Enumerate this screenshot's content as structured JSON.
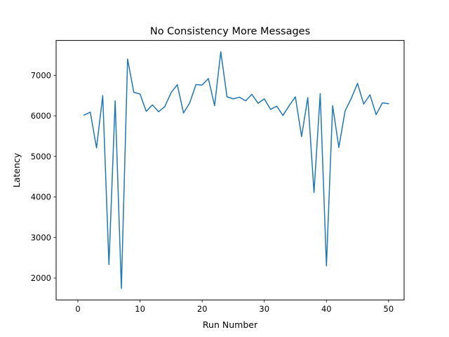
{
  "chart_data": {
    "type": "line",
    "title": "No Consistency More Messages",
    "xlabel": "Run Number",
    "ylabel": "Latency",
    "xlim": [
      -3.5,
      52.5
    ],
    "ylim": [
      1460,
      7860
    ],
    "xticks": [
      0,
      10,
      20,
      30,
      40,
      50
    ],
    "yticks": [
      2000,
      3000,
      4000,
      5000,
      6000,
      7000
    ],
    "grid": false,
    "series": [
      {
        "color": "#1f77b4",
        "x": [
          1,
          2,
          3,
          4,
          5,
          6,
          7,
          8,
          9,
          10,
          11,
          12,
          13,
          14,
          15,
          16,
          17,
          18,
          19,
          20,
          21,
          22,
          23,
          24,
          25,
          26,
          27,
          28,
          29,
          30,
          31,
          32,
          33,
          34,
          35,
          36,
          37,
          38,
          39,
          40,
          41,
          42,
          43,
          44,
          45,
          46,
          47,
          48,
          49,
          50
        ],
        "y": [
          6020,
          6090,
          5210,
          6500,
          2330,
          6370,
          1740,
          7400,
          6580,
          6540,
          6110,
          6270,
          6100,
          6230,
          6570,
          6770,
          6070,
          6320,
          6770,
          6760,
          6920,
          6250,
          7580,
          6470,
          6420,
          6460,
          6370,
          6530,
          6310,
          6420,
          6160,
          6240,
          6010,
          6250,
          6470,
          5490,
          6450,
          4110,
          6550,
          2300,
          6250,
          5220,
          6120,
          6430,
          6800,
          6290,
          6520,
          6030,
          6320,
          6300
        ]
      }
    ]
  }
}
